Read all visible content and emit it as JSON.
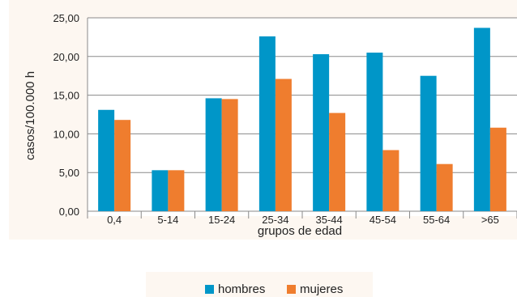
{
  "chart_data": {
    "type": "bar",
    "title": "",
    "xlabel": "grupos de edad",
    "ylabel": "casos/100.000 h",
    "categories": [
      "0,4",
      "5-14",
      "15-24",
      "25-34",
      "35-44",
      "45-54",
      "55-64",
      ">65"
    ],
    "series": [
      {
        "name": "hombres",
        "color": "#0096c8",
        "values": [
          13.1,
          5.3,
          14.6,
          22.6,
          20.3,
          20.5,
          17.5,
          23.7
        ]
      },
      {
        "name": "mujeres",
        "color": "#ef7d2e",
        "values": [
          11.8,
          5.3,
          14.5,
          17.1,
          12.7,
          7.9,
          6.1,
          10.8
        ]
      }
    ],
    "ylim": [
      0,
      25
    ],
    "yticks": [
      "0,00",
      "5,00",
      "10,00",
      "15,00",
      "20,00",
      "25,00"
    ],
    "ytick_values": [
      0,
      5,
      10,
      15,
      20,
      25
    ],
    "grid": true,
    "legend_position": "bottom-center"
  }
}
